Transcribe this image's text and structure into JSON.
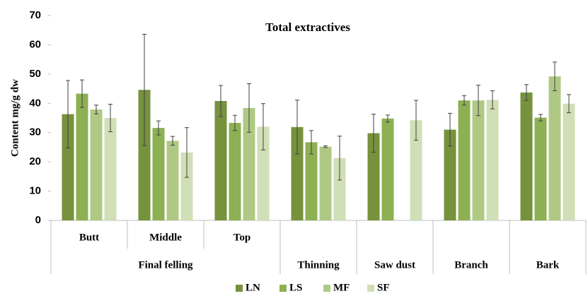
{
  "chart_data": {
    "type": "bar",
    "title": "Total extractives",
    "y_label": "Content mg/g dw",
    "groups": [
      {
        "name": "Final felling",
        "categories": [
          "Butt",
          "Middle",
          "Top"
        ]
      },
      {
        "name": "Thinning",
        "categories": [
          null
        ]
      },
      {
        "name": "Saw dust",
        "categories": [
          null
        ]
      },
      {
        "name": "Branch",
        "categories": [
          null
        ]
      },
      {
        "name": "Bark",
        "categories": [
          null
        ]
      }
    ],
    "series": [
      {
        "name": "LN",
        "color": "#76923c",
        "values": [
          36.3,
          44.6,
          40.8,
          31.9,
          29.8,
          31.0,
          43.7
        ],
        "errors": [
          11.5,
          19.0,
          5.3,
          9.2,
          6.5,
          5.6,
          2.7
        ]
      },
      {
        "name": "LS",
        "color": "#8db053",
        "values": [
          43.3,
          31.6,
          33.3,
          26.7,
          34.8,
          41.0,
          35.1
        ],
        "errors": [
          4.7,
          2.4,
          2.6,
          4.0,
          1.2,
          1.6,
          1.1
        ]
      },
      {
        "name": "MF",
        "color": "#afc985",
        "values": [
          37.9,
          27.2,
          38.4,
          25.2,
          null,
          41.0,
          49.2
        ],
        "errors": [
          1.5,
          1.5,
          8.3,
          0.3,
          null,
          5.2,
          4.9
        ]
      },
      {
        "name": "SF",
        "color": "#d0dfb6",
        "values": [
          35.0,
          23.2,
          32.0,
          21.3,
          34.2,
          41.2,
          39.9
        ],
        "errors": [
          4.7,
          8.5,
          7.9,
          7.5,
          6.8,
          3.1,
          3.1
        ]
      }
    ],
    "ylim": [
      0,
      70
    ],
    "yticks": [
      0,
      10,
      20,
      30,
      40,
      50,
      60,
      70
    ],
    "grid": false,
    "legend": "bottom"
  }
}
